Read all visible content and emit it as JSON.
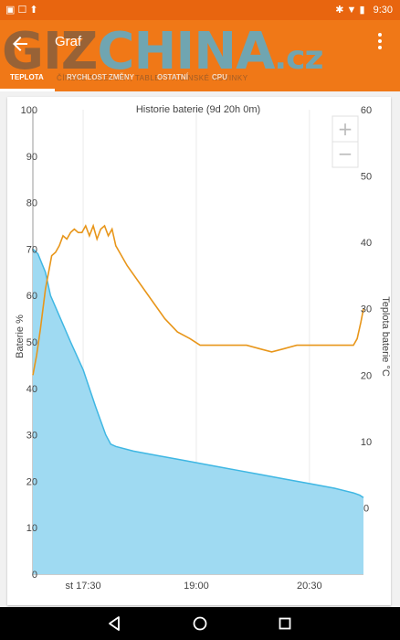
{
  "status": {
    "time": "9:30"
  },
  "app": {
    "title": "Graf",
    "watermark": {
      "giz": "GIZ",
      "china": "CHINA",
      "cz": ".cz",
      "sub": "ČÍNSKÉ TELEFONY, TABLETY A ČÍNSKÉ NOVINKY"
    },
    "tabs": [
      {
        "label": "TEPLOTA",
        "active": true
      },
      {
        "label": "RYCHLOST ZMĚNY",
        "active": false
      },
      {
        "label": "OSTATNÍ",
        "active": false
      },
      {
        "label": "CPU",
        "active": false
      }
    ]
  },
  "zoom": {
    "plus": "+",
    "minus": "−"
  },
  "chart_data": {
    "type": "area",
    "title": "Historie baterie (9d 20h 0m)",
    "y_left_label": "Baterie %",
    "y_right_label": "Teplota baterie °C",
    "y_left_ticks": [
      "100",
      "90",
      "80",
      "70",
      "60",
      "50",
      "40",
      "30",
      "20",
      "10",
      "0"
    ],
    "y_right_ticks": [
      "60",
      "50",
      "40",
      "30",
      "20",
      "10",
      "0"
    ],
    "x_ticks": [
      "st 17:30",
      "19:00",
      "20:30"
    ],
    "x_tick_minutes": [
      0,
      90,
      180
    ],
    "y_left_range": [
      0,
      100
    ],
    "y_right_range": [
      -10,
      60
    ],
    "x_range_minutes": [
      -40,
      223
    ],
    "series": [
      {
        "name": "Baterie %",
        "color": "#3fb7e3",
        "axis": "left",
        "x": [
          -40,
          -36,
          -30,
          -26,
          -18,
          -10,
          0,
          10,
          18,
          22,
          26,
          40,
          60,
          80,
          100,
          120,
          140,
          160,
          180,
          200,
          215,
          220,
          223
        ],
        "y": [
          70,
          69,
          65,
          60,
          55,
          50,
          44,
          36,
          30,
          28,
          27.5,
          26.5,
          25.5,
          24.5,
          23.5,
          22.5,
          21.5,
          20.5,
          19.5,
          18.5,
          17.5,
          17,
          16.5
        ]
      },
      {
        "name": "Teplota baterie °C",
        "color": "#e8961a",
        "axis": "right",
        "x": [
          -40,
          -37,
          -34,
          -30,
          -27,
          -25,
          -22,
          -19,
          -16,
          -13,
          -10,
          -7,
          -4,
          -1,
          2,
          5,
          8,
          11,
          14,
          17,
          20,
          23,
          26,
          35,
          50,
          65,
          75,
          85,
          93,
          100,
          115,
          130,
          140,
          150,
          160,
          170,
          180,
          195,
          210,
          215,
          218,
          221,
          223
        ],
        "y": [
          20,
          23,
          27,
          33,
          36,
          38,
          38.5,
          39.5,
          41,
          40.5,
          41.5,
          42,
          41.5,
          41.5,
          42.5,
          41,
          42.5,
          40.5,
          42,
          42.5,
          41,
          42,
          39.5,
          36.5,
          32.5,
          28.5,
          26.5,
          25.5,
          24.5,
          24.5,
          24.5,
          24.5,
          24,
          23.5,
          24,
          24.5,
          24.5,
          24.5,
          24.5,
          24.5,
          25.5,
          28,
          30
        ]
      }
    ]
  }
}
